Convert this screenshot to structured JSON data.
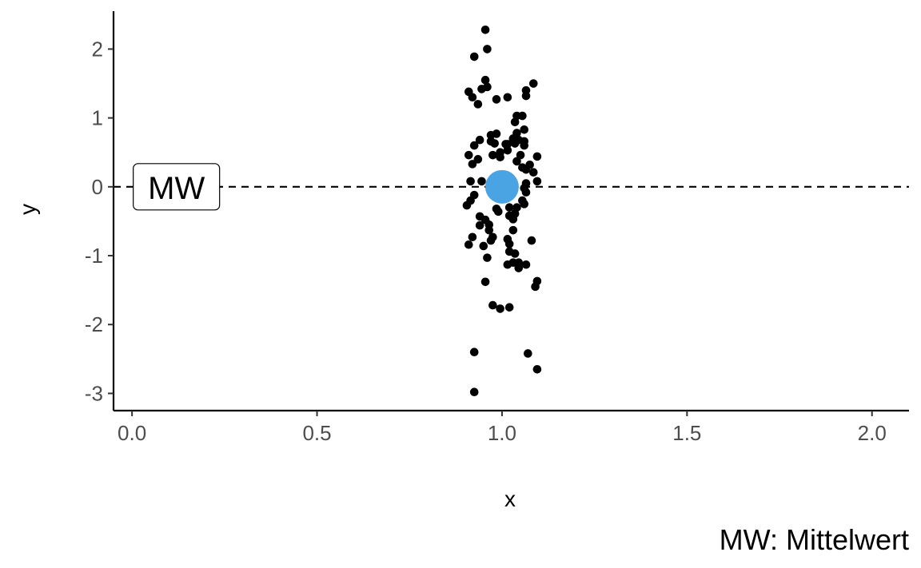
{
  "chart_data": {
    "type": "scatter",
    "xlabel": "x",
    "ylabel": "y",
    "xlim": [
      -0.05,
      2.1
    ],
    "ylim": [
      -3.25,
      2.55
    ],
    "x_ticks": [
      0.0,
      0.5,
      1.0,
      1.5,
      2.0
    ],
    "x_tick_labels": [
      "0.0",
      "0.5",
      "1.0",
      "1.5",
      "2.0"
    ],
    "y_ticks": [
      -3,
      -2,
      -1,
      0,
      1,
      2
    ],
    "y_tick_labels": [
      "-3",
      "-2",
      "-1",
      "0",
      "1",
      "2"
    ],
    "grid": false,
    "reference_line": {
      "y": 0,
      "style": "dashed",
      "color": "#000000"
    },
    "label_box": {
      "text": "MW",
      "x": 0.12,
      "y": 0
    },
    "caption": "MW: Mittelwert",
    "mean_point": {
      "x": 1.0,
      "y": 0.0,
      "color": "#4aa3e2"
    },
    "point_color": "#000000",
    "points": [
      [
        0.955,
        2.28
      ],
      [
        0.96,
        2.0
      ],
      [
        0.925,
        1.89
      ],
      [
        0.955,
        1.55
      ],
      [
        0.96,
        1.45
      ],
      [
        0.945,
        1.42
      ],
      [
        0.91,
        1.38
      ],
      [
        0.92,
        1.3
      ],
      [
        0.935,
        1.2
      ],
      [
        1.085,
        1.5
      ],
      [
        1.065,
        1.4
      ],
      [
        1.065,
        1.32
      ],
      [
        1.015,
        1.3
      ],
      [
        0.985,
        1.27
      ],
      [
        1.055,
        1.03
      ],
      [
        1.04,
        1.03
      ],
      [
        1.035,
        0.94
      ],
      [
        1.06,
        0.83
      ],
      [
        1.04,
        0.78
      ],
      [
        0.985,
        0.77
      ],
      [
        0.97,
        0.75
      ],
      [
        0.97,
        0.66
      ],
      [
        1.03,
        0.7
      ],
      [
        1.045,
        0.68
      ],
      [
        1.06,
        0.66
      ],
      [
        1.06,
        0.6
      ],
      [
        1.035,
        0.63
      ],
      [
        1.015,
        0.62
      ],
      [
        0.98,
        0.63
      ],
      [
        0.94,
        0.68
      ],
      [
        0.925,
        0.6
      ],
      [
        0.91,
        0.46
      ],
      [
        0.935,
        0.4
      ],
      [
        0.975,
        0.46
      ],
      [
        0.995,
        0.5
      ],
      [
        1.015,
        0.53
      ],
      [
        1.01,
        0.62
      ],
      [
        0.995,
        0.43
      ],
      [
        1.05,
        0.46
      ],
      [
        1.095,
        0.44
      ],
      [
        1.04,
        0.37
      ],
      [
        1.075,
        0.32
      ],
      [
        1.055,
        0.28
      ],
      [
        1.065,
        0.25
      ],
      [
        1.085,
        0.21
      ],
      [
        0.92,
        0.33
      ],
      [
        0.915,
        0.08
      ],
      [
        0.945,
        0.08
      ],
      [
        1.095,
        0.08
      ],
      [
        1.065,
        0.05
      ],
      [
        1.06,
        -0.02
      ],
      [
        1.065,
        -0.08
      ],
      [
        0.925,
        -0.12
      ],
      [
        0.915,
        -0.2
      ],
      [
        0.905,
        -0.27
      ],
      [
        1.06,
        -0.25
      ],
      [
        1.055,
        -0.2
      ],
      [
        1.04,
        -0.3
      ],
      [
        1.02,
        -0.3
      ],
      [
        0.985,
        -0.32
      ],
      [
        0.99,
        -0.36
      ],
      [
        1.02,
        -0.42
      ],
      [
        1.03,
        -0.47
      ],
      [
        1.035,
        -0.39
      ],
      [
        0.955,
        -0.48
      ],
      [
        0.94,
        -0.43
      ],
      [
        0.94,
        -0.56
      ],
      [
        0.965,
        -0.55
      ],
      [
        0.965,
        -0.63
      ],
      [
        1.03,
        -0.63
      ],
      [
        0.975,
        -0.73
      ],
      [
        0.97,
        -0.78
      ],
      [
        1.015,
        -0.76
      ],
      [
        1.02,
        -0.83
      ],
      [
        0.95,
        -0.86
      ],
      [
        0.92,
        -0.73
      ],
      [
        0.91,
        -0.84
      ],
      [
        1.02,
        -0.94
      ],
      [
        1.035,
        -0.97
      ],
      [
        1.08,
        -0.78
      ],
      [
        0.96,
        -1.03
      ],
      [
        1.03,
        -1.1
      ],
      [
        1.045,
        -1.1
      ],
      [
        1.015,
        -1.13
      ],
      [
        1.045,
        -1.18
      ],
      [
        1.065,
        -1.13
      ],
      [
        1.095,
        -1.37
      ],
      [
        1.09,
        -1.45
      ],
      [
        0.955,
        -1.38
      ],
      [
        0.975,
        -1.72
      ],
      [
        0.995,
        -1.77
      ],
      [
        1.02,
        -1.75
      ],
      [
        0.925,
        -2.4
      ],
      [
        1.07,
        -2.42
      ],
      [
        1.095,
        -2.65
      ],
      [
        0.925,
        -2.98
      ]
    ]
  }
}
